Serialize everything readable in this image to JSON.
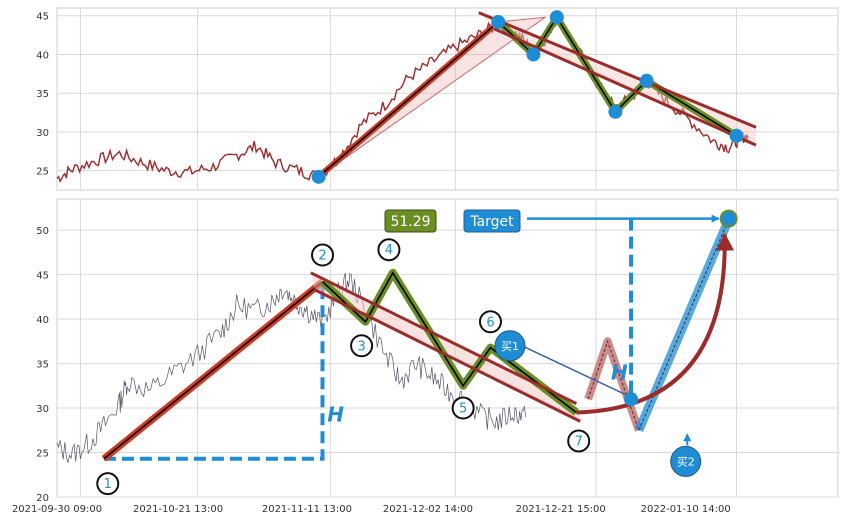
{
  "chart_data": [
    {
      "panel": "top",
      "type": "line",
      "ylim": [
        22.5,
        46
      ],
      "yticks": [
        25,
        30,
        35,
        40,
        45
      ],
      "grid": true,
      "price_line_color": "#9c2b2b",
      "price_anchor_points": [
        {
          "x": 0.0,
          "y": 24.0
        },
        {
          "x": 0.02,
          "y": 25.2
        },
        {
          "x": 0.05,
          "y": 26.3
        },
        {
          "x": 0.08,
          "y": 27.2
        },
        {
          "x": 0.11,
          "y": 26.0
        },
        {
          "x": 0.14,
          "y": 25.0
        },
        {
          "x": 0.17,
          "y": 24.8
        },
        {
          "x": 0.2,
          "y": 25.5
        },
        {
          "x": 0.23,
          "y": 27.0
        },
        {
          "x": 0.255,
          "y": 28.2
        },
        {
          "x": 0.28,
          "y": 26.0
        },
        {
          "x": 0.31,
          "y": 25.0
        },
        {
          "x": 0.335,
          "y": 24.2
        },
        {
          "x": 0.36,
          "y": 26.5
        },
        {
          "x": 0.39,
          "y": 31.0
        },
        {
          "x": 0.42,
          "y": 33.5
        },
        {
          "x": 0.45,
          "y": 37.0
        },
        {
          "x": 0.48,
          "y": 39.0
        },
        {
          "x": 0.51,
          "y": 41.0
        },
        {
          "x": 0.54,
          "y": 42.5
        },
        {
          "x": 0.565,
          "y": 44.0
        },
        {
          "x": 0.59,
          "y": 42.5
        },
        {
          "x": 0.61,
          "y": 40.5
        },
        {
          "x": 0.625,
          "y": 42.0
        },
        {
          "x": 0.64,
          "y": 44.8
        },
        {
          "x": 0.665,
          "y": 41.0
        },
        {
          "x": 0.69,
          "y": 36.5
        },
        {
          "x": 0.715,
          "y": 33.0
        },
        {
          "x": 0.735,
          "y": 34.5
        },
        {
          "x": 0.755,
          "y": 36.5
        },
        {
          "x": 0.78,
          "y": 34.0
        },
        {
          "x": 0.81,
          "y": 31.5
        },
        {
          "x": 0.84,
          "y": 28.8
        },
        {
          "x": 0.86,
          "y": 28.0
        },
        {
          "x": 0.875,
          "y": 29.2
        },
        {
          "x": 0.885,
          "y": 29.5
        }
      ],
      "zigzag_points": [
        {
          "x": 0.335,
          "y": 24.2
        },
        {
          "x": 0.565,
          "y": 44.2
        },
        {
          "x": 0.61,
          "y": 40.0
        },
        {
          "x": 0.64,
          "y": 44.8
        },
        {
          "x": 0.715,
          "y": 32.6
        },
        {
          "x": 0.755,
          "y": 36.6
        },
        {
          "x": 0.87,
          "y": 29.5
        }
      ],
      "channel_upper": [
        {
          "x": 0.54,
          "y": 45.4
        },
        {
          "x": 0.895,
          "y": 30.6
        }
      ],
      "channel_lower": [
        {
          "x": 0.56,
          "y": 43.3
        },
        {
          "x": 0.895,
          "y": 28.3
        }
      ]
    },
    {
      "panel": "bottom",
      "type": "line",
      "ylim": [
        20,
        53.5
      ],
      "yticks": [
        20,
        25,
        30,
        35,
        40,
        45,
        50
      ],
      "xticks": [
        "2021-09-30 09:00",
        "2021-10-21 13:00",
        "2021-11-11 13:00",
        "2021-12-02 14:00",
        "2021-12-21 15:00",
        "2022-01-10 14:00"
      ],
      "grid": true,
      "price_line_color": "#555566",
      "price_anchor_points": [
        {
          "x": 0.0,
          "y": 25.5
        },
        {
          "x": 0.02,
          "y": 24.8
        },
        {
          "x": 0.04,
          "y": 26.0
        },
        {
          "x": 0.06,
          "y": 28.0
        },
        {
          "x": 0.08,
          "y": 30.5
        },
        {
          "x": 0.09,
          "y": 33.0
        },
        {
          "x": 0.12,
          "y": 32.0
        },
        {
          "x": 0.15,
          "y": 34.0
        },
        {
          "x": 0.18,
          "y": 36.0
        },
        {
          "x": 0.21,
          "y": 38.5
        },
        {
          "x": 0.23,
          "y": 41.5
        },
        {
          "x": 0.255,
          "y": 41.0
        },
        {
          "x": 0.275,
          "y": 42.0
        },
        {
          "x": 0.29,
          "y": 43.5
        },
        {
          "x": 0.305,
          "y": 42.0
        },
        {
          "x": 0.32,
          "y": 41.0
        },
        {
          "x": 0.34,
          "y": 39.5
        },
        {
          "x": 0.36,
          "y": 43.0
        },
        {
          "x": 0.375,
          "y": 44.5
        },
        {
          "x": 0.395,
          "y": 41.0
        },
        {
          "x": 0.42,
          "y": 36.0
        },
        {
          "x": 0.44,
          "y": 33.0
        },
        {
          "x": 0.46,
          "y": 35.0
        },
        {
          "x": 0.48,
          "y": 33.5
        },
        {
          "x": 0.5,
          "y": 32.0
        },
        {
          "x": 0.52,
          "y": 31.0
        },
        {
          "x": 0.545,
          "y": 29.0
        },
        {
          "x": 0.565,
          "y": 28.5
        },
        {
          "x": 0.585,
          "y": 29.5
        },
        {
          "x": 0.6,
          "y": 29.0
        }
      ],
      "leg_1_2": [
        {
          "x": 0.06,
          "y": 24.3
        },
        {
          "x": 0.34,
          "y": 44.2
        }
      ],
      "zigzag_points": [
        {
          "x": 0.34,
          "y": 44.2
        },
        {
          "x": 0.395,
          "y": 39.7
        },
        {
          "x": 0.43,
          "y": 45.2
        },
        {
          "x": 0.52,
          "y": 32.5
        },
        {
          "x": 0.555,
          "y": 36.8
        },
        {
          "x": 0.665,
          "y": 29.5
        }
      ],
      "channel_upper": [
        {
          "x": 0.325,
          "y": 45.2
        },
        {
          "x": 0.665,
          "y": 30.5
        }
      ],
      "channel_lower": [
        {
          "x": 0.33,
          "y": 43.3
        },
        {
          "x": 0.67,
          "y": 28.5
        }
      ],
      "forecast_path": [
        {
          "x": 0.68,
          "y": 31.0
        },
        {
          "x": 0.705,
          "y": 37.5
        },
        {
          "x": 0.745,
          "y": 27.5
        },
        {
          "x": 0.86,
          "y": 51.2
        }
      ],
      "target_value": 51.29,
      "pivot_labels": [
        {
          "text": "1",
          "x": 0.065,
          "y": 21.5
        },
        {
          "text": "2",
          "x": 0.34,
          "y": 47.2
        },
        {
          "text": "3",
          "x": 0.39,
          "y": 37.0
        },
        {
          "text": "4",
          "x": 0.425,
          "y": 47.8
        },
        {
          "text": "5",
          "x": 0.52,
          "y": 30.0
        },
        {
          "text": "6",
          "x": 0.555,
          "y": 39.7
        },
        {
          "text": "7",
          "x": 0.668,
          "y": 26.3
        }
      ]
    }
  ],
  "labels": {
    "target_value_text": "51.29",
    "target_text": "Target",
    "buy1_text": "买1",
    "buy2_text": "买2",
    "height_marker": "H"
  },
  "colors": {
    "impulse_red": "#d23a22",
    "channel_red": "#9c2b2b",
    "zigzag_green": "#6b8e23",
    "pivot_blue": "#1f8dd6",
    "target_box_green": "#6b8e23",
    "target_box_blue": "#1f8dd6"
  }
}
